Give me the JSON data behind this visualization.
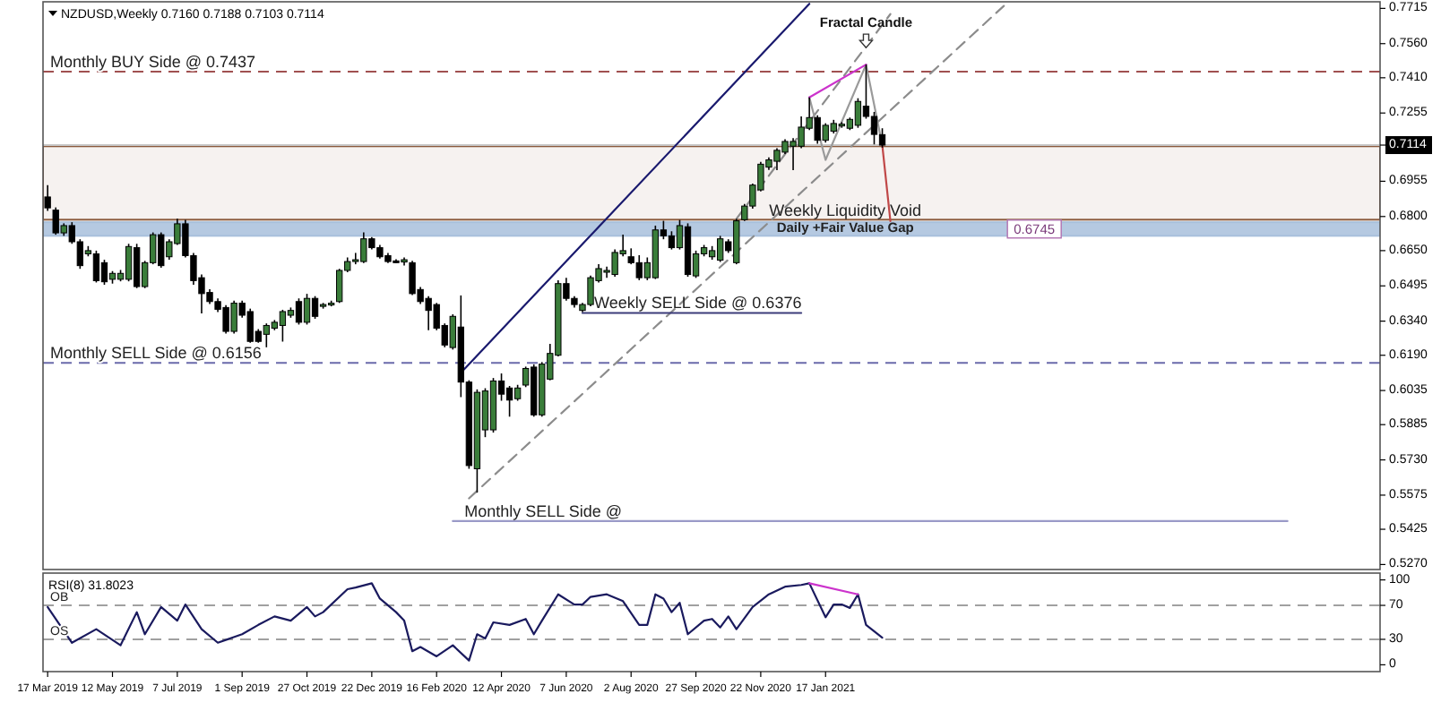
{
  "chart_data": [
    {
      "type": "candlestick",
      "title": "NZDUSD,Weekly  0.7160 0.7188 0.7103 0.7114",
      "x": [
        "2019-03-17",
        "2019-03-24",
        "2019-03-31",
        "2019-04-07",
        "2019-04-14",
        "2019-04-21",
        "2019-04-28",
        "2019-05-05",
        "2019-05-12",
        "2019-05-19",
        "2019-05-26",
        "2019-06-02",
        "2019-06-09",
        "2019-06-16",
        "2019-06-23",
        "2019-06-30",
        "2019-07-07",
        "2019-07-14",
        "2019-07-21",
        "2019-07-28",
        "2019-08-04",
        "2019-08-11",
        "2019-08-18",
        "2019-08-25",
        "2019-09-01",
        "2019-09-08",
        "2019-09-15",
        "2019-09-22",
        "2019-09-29",
        "2019-10-06",
        "2019-10-13",
        "2019-10-20",
        "2019-10-27",
        "2019-11-03",
        "2019-11-10",
        "2019-11-17",
        "2019-11-24",
        "2019-12-01",
        "2019-12-08",
        "2019-12-15",
        "2019-12-22",
        "2019-12-29",
        "2020-01-05",
        "2020-01-12",
        "2020-01-19",
        "2020-01-26",
        "2020-02-02",
        "2020-02-09",
        "2020-02-16",
        "2020-02-23",
        "2020-03-01",
        "2020-03-08",
        "2020-03-15",
        "2020-03-22",
        "2020-03-29",
        "2020-04-05",
        "2020-04-12",
        "2020-04-19",
        "2020-04-26",
        "2020-05-03",
        "2020-05-10",
        "2020-05-17",
        "2020-05-24",
        "2020-05-31",
        "2020-06-07",
        "2020-06-14",
        "2020-06-21",
        "2020-06-28",
        "2020-07-05",
        "2020-07-12",
        "2020-07-19",
        "2020-07-26",
        "2020-08-02",
        "2020-08-09",
        "2020-08-16",
        "2020-08-23",
        "2020-08-30",
        "2020-09-06",
        "2020-09-13",
        "2020-09-20",
        "2020-09-27",
        "2020-10-04",
        "2020-10-11",
        "2020-10-18",
        "2020-10-25",
        "2020-11-01",
        "2020-11-08",
        "2020-11-15",
        "2020-11-22",
        "2020-11-29",
        "2020-12-06",
        "2020-12-13",
        "2020-12-20",
        "2020-12-27",
        "2021-01-03",
        "2021-01-10",
        "2021-01-17",
        "2021-01-24",
        "2021-01-31",
        "2021-02-07",
        "2021-02-14",
        "2021-02-21",
        "2021-02-28",
        "2021-03-07"
      ],
      "ohlc": [
        [
          0.6886,
          0.6938,
          0.6825,
          0.6838
        ],
        [
          0.6828,
          0.684,
          0.672,
          0.6728
        ],
        [
          0.6728,
          0.677,
          0.6715,
          0.676
        ],
        [
          0.676,
          0.6775,
          0.668,
          0.6689
        ],
        [
          0.6689,
          0.67,
          0.657,
          0.6584
        ],
        [
          0.6636,
          0.667,
          0.6625,
          0.665
        ],
        [
          0.6636,
          0.665,
          0.651,
          0.6518
        ],
        [
          0.6597,
          0.661,
          0.65,
          0.6513
        ],
        [
          0.6524,
          0.656,
          0.6505,
          0.655
        ],
        [
          0.6524,
          0.6565,
          0.6515,
          0.655
        ],
        [
          0.6524,
          0.668,
          0.6515,
          0.6668
        ],
        [
          0.6663,
          0.668,
          0.6485,
          0.6492
        ],
        [
          0.6492,
          0.6605,
          0.6485,
          0.6597
        ],
        [
          0.6597,
          0.673,
          0.659,
          0.672
        ],
        [
          0.672,
          0.673,
          0.6575,
          0.6584
        ],
        [
          0.6623,
          0.67,
          0.661,
          0.6689
        ],
        [
          0.6681,
          0.679,
          0.6675,
          0.6768
        ],
        [
          0.6768,
          0.6785,
          0.662,
          0.6628
        ],
        [
          0.6628,
          0.664,
          0.65,
          0.6518
        ],
        [
          0.6531,
          0.6545,
          0.6374,
          0.6461
        ],
        [
          0.6466,
          0.648,
          0.6415,
          0.6426
        ],
        [
          0.6426,
          0.644,
          0.638,
          0.6392
        ],
        [
          0.64,
          0.641,
          0.6285,
          0.6295
        ],
        [
          0.6295,
          0.643,
          0.6285,
          0.6419
        ],
        [
          0.6419,
          0.643,
          0.6355,
          0.6366
        ],
        [
          0.6382,
          0.6395,
          0.6245,
          0.6251
        ],
        [
          0.6295,
          0.6305,
          0.6245,
          0.6251
        ],
        [
          0.6282,
          0.633,
          0.6225,
          0.6321
        ],
        [
          0.6309,
          0.6345,
          0.63,
          0.6335
        ],
        [
          0.6321,
          0.639,
          0.625,
          0.6382
        ],
        [
          0.6366,
          0.64,
          0.6355,
          0.6387
        ],
        [
          0.6426,
          0.644,
          0.6325,
          0.6335
        ],
        [
          0.6335,
          0.646,
          0.6325,
          0.644
        ],
        [
          0.644,
          0.645,
          0.635,
          0.6361
        ],
        [
          0.6405,
          0.642,
          0.6395,
          0.6413
        ],
        [
          0.6413,
          0.643,
          0.6405,
          0.6419
        ],
        [
          0.6426,
          0.657,
          0.642,
          0.6563
        ],
        [
          0.6563,
          0.662,
          0.6555,
          0.6602
        ],
        [
          0.6605,
          0.664,
          0.659,
          0.661
        ],
        [
          0.6602,
          0.673,
          0.6595,
          0.6702
        ],
        [
          0.6702,
          0.671,
          0.6655,
          0.6663
        ],
        [
          0.6663,
          0.6675,
          0.6615,
          0.6623
        ],
        [
          0.6628,
          0.664,
          0.6595,
          0.6602
        ],
        [
          0.6605,
          0.6612,
          0.6595,
          0.66
        ],
        [
          0.66,
          0.662,
          0.6585,
          0.661
        ],
        [
          0.6597,
          0.6605,
          0.6455,
          0.6461
        ],
        [
          0.6479,
          0.649,
          0.6415,
          0.6426
        ],
        [
          0.644,
          0.645,
          0.63,
          0.6387
        ],
        [
          0.6413,
          0.642,
          0.63,
          0.6309
        ],
        [
          0.6321,
          0.633,
          0.6225,
          0.6235
        ],
        [
          0.6224,
          0.637,
          0.6215,
          0.6361
        ],
        [
          0.6314,
          0.6453,
          0.6006,
          0.6072
        ],
        [
          0.6072,
          0.608,
          0.5691,
          0.5705
        ],
        [
          0.5691,
          0.604,
          0.5586,
          0.6027
        ],
        [
          0.5862,
          0.6045,
          0.583,
          0.6033
        ],
        [
          0.5862,
          0.609,
          0.585,
          0.6077
        ],
        [
          0.6077,
          0.611,
          0.599,
          0.6019
        ],
        [
          0.6046,
          0.6055,
          0.592,
          0.5993
        ],
        [
          0.5999,
          0.606,
          0.599,
          0.6046
        ],
        [
          0.6059,
          0.614,
          0.605,
          0.6132
        ],
        [
          0.6138,
          0.615,
          0.592,
          0.5928
        ],
        [
          0.5928,
          0.616,
          0.592,
          0.6151
        ],
        [
          0.6085,
          0.624,
          0.608,
          0.6198
        ],
        [
          0.619,
          0.652,
          0.6185,
          0.6505
        ],
        [
          0.6505,
          0.653,
          0.643,
          0.644
        ],
        [
          0.644,
          0.645,
          0.64,
          0.6413
        ],
        [
          0.6387,
          0.642,
          0.638,
          0.6413
        ],
        [
          0.6413,
          0.654,
          0.6405,
          0.6531
        ],
        [
          0.6518,
          0.659,
          0.651,
          0.6571
        ],
        [
          0.6555,
          0.658,
          0.653,
          0.6563
        ],
        [
          0.6545,
          0.6655,
          0.6535,
          0.6642
        ],
        [
          0.6636,
          0.672,
          0.6625,
          0.665
        ],
        [
          0.6623,
          0.666,
          0.659,
          0.6597
        ],
        [
          0.6597,
          0.663,
          0.652,
          0.6531
        ],
        [
          0.6531,
          0.662,
          0.652,
          0.6597
        ],
        [
          0.6531,
          0.676,
          0.6525,
          0.6741
        ],
        [
          0.6741,
          0.6781,
          0.67,
          0.6715
        ],
        [
          0.6715,
          0.6735,
          0.6655,
          0.6663
        ],
        [
          0.6663,
          0.6785,
          0.6655,
          0.676
        ],
        [
          0.6755,
          0.677,
          0.6535,
          0.6545
        ],
        [
          0.6539,
          0.665,
          0.653,
          0.6636
        ],
        [
          0.6636,
          0.6675,
          0.6625,
          0.6663
        ],
        [
          0.6623,
          0.667,
          0.661,
          0.665
        ],
        [
          0.6608,
          0.6715,
          0.66,
          0.6702
        ],
        [
          0.6689,
          0.67,
          0.664,
          0.665
        ],
        [
          0.6597,
          0.679,
          0.659,
          0.6781
        ],
        [
          0.6786,
          0.6855,
          0.678,
          0.6846
        ],
        [
          0.6846,
          0.6945,
          0.6835,
          0.6938
        ],
        [
          0.6917,
          0.704,
          0.691,
          0.703
        ],
        [
          0.7017,
          0.706,
          0.7005,
          0.7049
        ],
        [
          0.7043,
          0.71,
          0.7004,
          0.7091
        ],
        [
          0.7083,
          0.714,
          0.7075,
          0.713
        ],
        [
          0.7109,
          0.7145,
          0.7004,
          0.713
        ],
        [
          0.7109,
          0.724,
          0.71,
          0.7193
        ],
        [
          0.7188,
          0.7324,
          0.718,
          0.7235
        ],
        [
          0.7235,
          0.7245,
          0.712,
          0.7135
        ],
        [
          0.7135,
          0.721,
          0.7125,
          0.7201
        ],
        [
          0.7175,
          0.7225,
          0.7165,
          0.7209
        ],
        [
          0.7201,
          0.7215,
          0.719,
          0.7206
        ],
        [
          0.7188,
          0.7235,
          0.718,
          0.7227
        ],
        [
          0.7201,
          0.732,
          0.719,
          0.7306
        ],
        [
          0.7285,
          0.7468,
          0.723,
          0.724
        ],
        [
          0.724,
          0.726,
          0.7117,
          0.7161
        ],
        [
          0.716,
          0.7188,
          0.7103,
          0.7114
        ]
      ],
      "colors": [
        "#000000",
        "#000000",
        "#3a7d3a",
        "#000000",
        "#000000",
        "#3a7d3a",
        "#000000",
        "#000000",
        "#3a7d3a",
        "#3a7d3a",
        "#3a7d3a",
        "#000000",
        "#3a7d3a",
        "#3a7d3a",
        "#000000",
        "#3a7d3a",
        "#3a7d3a",
        "#000000",
        "#000000",
        "#000000",
        "#000000",
        "#000000",
        "#000000",
        "#3a7d3a",
        "#000000",
        "#000000",
        "#000000",
        "#3a7d3a",
        "#3a7d3a",
        "#3a7d3a",
        "#3a7d3a",
        "#000000",
        "#3a7d3a",
        "#000000",
        "#3a7d3a",
        "#3a7d3a",
        "#3a7d3a",
        "#3a7d3a",
        "#3a7d3a",
        "#3a7d3a",
        "#000000",
        "#000000",
        "#000000",
        "#000000",
        "#3a7d3a",
        "#000000",
        "#000000",
        "#000000",
        "#000000",
        "#000000",
        "#3a7d3a",
        "#000000",
        "#000000",
        "#3a7d3a",
        "#3a7d3a",
        "#3a7d3a",
        "#000000",
        "#000000",
        "#3a7d3a",
        "#3a7d3a",
        "#000000",
        "#3a7d3a",
        "#3a7d3a",
        "#3a7d3a",
        "#000000",
        "#000000",
        "#3a7d3a",
        "#3a7d3a",
        "#3a7d3a",
        "#3a7d3a",
        "#3a7d3a",
        "#3a7d3a",
        "#000000",
        "#000000",
        "#3a7d3a",
        "#3a7d3a",
        "#000000",
        "#000000",
        "#3a7d3a",
        "#000000",
        "#3a7d3a",
        "#3a7d3a",
        "#3a7d3a",
        "#3a7d3a",
        "#000000",
        "#3a7d3a",
        "#3a7d3a",
        "#3a7d3a",
        "#3a7d3a",
        "#3a7d3a",
        "#3a7d3a",
        "#3a7d3a",
        "#3a7d3a",
        "#3a7d3a",
        "#3a7d3a",
        "#000000",
        "#3a7d3a",
        "#3a7d3a",
        "#3a7d3a",
        "#3a7d3a",
        "#3a7d3a",
        "#000000",
        "#000000",
        "#000000"
      ],
      "series": [
        {
          "type": "line",
          "x": [
            "2020-03-08",
            "2021-01-03"
          ],
          "values": [
            0.6113,
            0.7735
          ],
          "color": "#1a1a6e"
        },
        {
          "type": "line",
          "x": [
            "2020-03-15",
            "2021-06-20"
          ],
          "values": [
            0.5561,
            0.7726
          ],
          "color": "#8c8c8c",
          "line_style": "dashed"
        },
        {
          "type": "line",
          "x": [
            "2020-11-01",
            "2021-03-14"
          ],
          "values": [
            0.679,
            0.769
          ],
          "color": "#8c8c8c",
          "line_style": "dashed"
        },
        {
          "type": "line",
          "x": [
            "2020-06-21",
            "2020-12-27"
          ],
          "values": [
            0.6376,
            0.6376
          ],
          "color": "#3c3c7a"
        },
        {
          "type": "line",
          "x": [
            "2020-03-01",
            "2022-02-20"
          ],
          "values": [
            0.5461,
            0.5461
          ],
          "color": "#9a9ac8"
        },
        {
          "type": "line",
          "x": [
            "2021-01-03",
            "2021-01-17",
            "2021-02-21",
            "2021-03-07"
          ],
          "values": [
            0.7324,
            0.7049,
            0.7468,
            0.7114
          ],
          "color": "#9a9a9a"
        },
        {
          "type": "line",
          "x": [
            "2021-01-03",
            "2021-02-21"
          ],
          "values": [
            0.7324,
            0.7468
          ],
          "color": "#cc33cc"
        },
        {
          "type": "line",
          "x": [
            "2021-03-07",
            "2021-03-14"
          ],
          "values": [
            0.7114,
            0.678
          ],
          "color": "#c04848"
        }
      ],
      "ref_lines": [
        {
          "axis": "y",
          "value": 0.7437,
          "label": "Monthly BUY Side @ 0.7437",
          "color": "#a05050",
          "line_style": "dashed"
        },
        {
          "axis": "y",
          "value": 0.6156,
          "label": "Monthly SELL Side @ 0.6156",
          "color": "#6a6aaa",
          "line_style": "dashed"
        },
        {
          "axis": "y",
          "value": 0.7114,
          "color": "#c8c8c8",
          "line_style": "solid"
        }
      ],
      "bands": [
        {
          "axis": "y",
          "from": 0.6786,
          "to": 0.7109,
          "label": "Weekly Liquidity Void",
          "color": "#8b5a3c"
        },
        {
          "axis": "y",
          "from": 0.6715,
          "to": 0.6775,
          "label": "Daily +Fair Value Gap",
          "color": "#a8c0dc"
        }
      ],
      "annotations": [
        {
          "text": "Fractal Candle",
          "x": "2021-02-21",
          "y": 0.7468
        },
        {
          "text": "Weekly SELL Side @ 0.6376",
          "x": "2020-06-28",
          "y": 0.6376
        },
        {
          "text": "Monthly SELL Side @",
          "x": "2020-03-08",
          "y": 0.5461
        },
        {
          "text": "0.6745",
          "x": "2021-06-20",
          "y": 0.6745
        }
      ],
      "xlim": [
        "2019-03-13",
        "2022-05-11"
      ],
      "ylim": [
        0.5248,
        0.7744
      ],
      "yticks": [
        {
          "value": 0.7715,
          "label": "0.7715"
        },
        {
          "value": 0.756,
          "label": "0.7560"
        },
        {
          "value": 0.741,
          "label": "0.7410"
        },
        {
          "value": 0.7255,
          "label": "0.7255"
        },
        {
          "value": 0.7114,
          "label": "0.7114"
        },
        {
          "value": 0.6955,
          "label": "0.6955"
        },
        {
          "value": 0.68,
          "label": "0.6800"
        },
        {
          "value": 0.665,
          "label": "0.6650"
        },
        {
          "value": 0.6495,
          "label": "0.6495"
        },
        {
          "value": 0.634,
          "label": "0.6340"
        },
        {
          "value": 0.619,
          "label": "0.6190"
        },
        {
          "value": 0.6035,
          "label": "0.6035"
        },
        {
          "value": 0.5885,
          "label": "0.5885"
        },
        {
          "value": 0.573,
          "label": "0.5730"
        },
        {
          "value": 0.5575,
          "label": "0.5575"
        },
        {
          "value": 0.5425,
          "label": "0.5425"
        },
        {
          "value": 0.527,
          "label": "0.5270"
        }
      ],
      "tick_labels": "y"
    },
    {
      "type": "line",
      "title": "RSI(8) 31.8023",
      "series": [
        {
          "color": "#1a1a5e",
          "x": [
            "2019-03-17",
            "2019-04-07",
            "2019-04-28",
            "2019-05-19",
            "2019-06-02",
            "2019-06-09",
            "2019-06-23",
            "2019-07-07",
            "2019-07-14",
            "2019-07-28",
            "2019-08-11",
            "2019-09-01",
            "2019-09-15",
            "2019-09-29",
            "2019-10-13",
            "2019-10-27",
            "2019-11-03",
            "2019-11-10",
            "2019-12-01",
            "2019-12-08",
            "2019-12-22",
            "2019-12-29",
            "2020-01-12",
            "2020-01-19",
            "2020-01-26",
            "2020-02-02",
            "2020-02-16",
            "2020-03-01",
            "2020-03-15",
            "2020-03-22",
            "2020-03-29",
            "2020-04-05",
            "2020-04-19",
            "2020-05-03",
            "2020-05-10",
            "2020-05-17",
            "2020-05-31",
            "2020-06-14",
            "2020-06-21",
            "2020-06-28",
            "2020-07-12",
            "2020-07-26",
            "2020-08-09",
            "2020-08-16",
            "2020-08-23",
            "2020-08-30",
            "2020-09-06",
            "2020-09-13",
            "2020-09-20",
            "2020-10-04",
            "2020-10-11",
            "2020-10-18",
            "2020-10-25",
            "2020-11-01",
            "2020-11-15",
            "2020-11-29",
            "2020-12-13",
            "2020-12-27",
            "2021-01-03",
            "2021-01-17",
            "2021-01-24",
            "2021-01-31",
            "2021-02-07",
            "2021-02-14",
            "2021-02-21",
            "2021-03-07"
          ],
          "values": [
            68,
            26,
            42,
            23,
            62,
            36,
            68,
            52,
            71,
            42,
            26,
            36,
            47,
            57,
            52,
            68,
            57,
            62,
            89,
            91,
            96,
            78,
            62,
            52,
            16,
            21,
            10,
            23,
            5,
            36,
            31,
            50,
            47,
            54,
            36,
            52,
            83,
            71,
            71,
            80,
            83,
            75,
            47,
            47,
            83,
            78,
            62,
            73,
            36,
            52,
            54,
            44,
            57,
            42,
            68,
            83,
            92,
            94,
            96,
            56,
            71,
            71,
            67,
            83,
            47,
            32
          ]
        },
        {
          "color": "#cc33cc",
          "x": [
            "2021-01-03",
            "2021-02-14"
          ],
          "values": [
            96,
            83
          ]
        }
      ],
      "ref_lines": [
        {
          "axis": "y",
          "value": 70,
          "label": "OB",
          "color": "#a0a0a0",
          "line_style": "dashed"
        },
        {
          "axis": "y",
          "value": 30,
          "label": "OS",
          "color": "#a0a0a0",
          "line_style": "dashed"
        }
      ],
      "xlim": [
        "2019-03-13",
        "2022-05-11"
      ],
      "xticks": [
        {
          "value": "2019-03-17",
          "label": "17 Mar 2019"
        },
        {
          "value": "2019-05-12",
          "label": "12 May 2019"
        },
        {
          "value": "2019-07-07",
          "label": "7 Jul 2019"
        },
        {
          "value": "2019-09-01",
          "label": "1 Sep 2019"
        },
        {
          "value": "2019-10-27",
          "label": "27 Oct 2019"
        },
        {
          "value": "2019-12-22",
          "label": "22 Dec 2019"
        },
        {
          "value": "2020-02-16",
          "label": "16 Feb 2020"
        },
        {
          "value": "2020-04-12",
          "label": "12 Apr 2020"
        },
        {
          "value": "2020-06-07",
          "label": "7 Jun 2020"
        },
        {
          "value": "2020-08-02",
          "label": "2 Aug 2020"
        },
        {
          "value": "2020-09-27",
          "label": "27 Sep 2020"
        },
        {
          "value": "2020-11-22",
          "label": "22 Nov 2020"
        },
        {
          "value": "2021-01-17",
          "label": "17 Jan 2021"
        }
      ],
      "ylim": [
        -8,
        108
      ],
      "yticks": [
        0,
        30,
        70,
        100
      ]
    }
  ]
}
